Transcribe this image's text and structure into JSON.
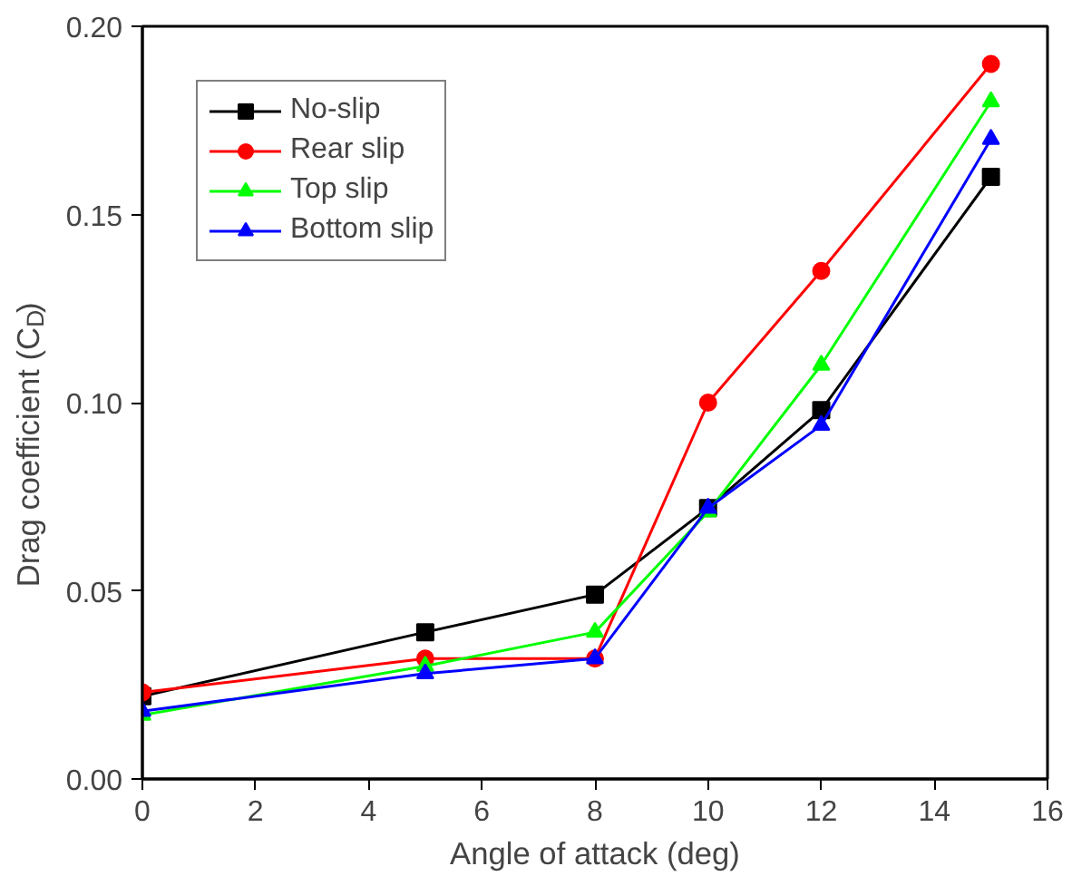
{
  "chart_data": {
    "type": "line",
    "xlabel": "Angle of attack (deg)",
    "ylabel": "Drag coefficient (C$_{D}$)",
    "x": [
      0,
      5,
      8,
      10,
      12,
      15
    ],
    "series": [
      {
        "name": "No-slip",
        "color": "#000000",
        "marker": "square",
        "values": [
          0.022,
          0.039,
          0.049,
          0.072,
          0.098,
          0.16
        ]
      },
      {
        "name": "Rear slip",
        "color": "#ff0000",
        "marker": "circle",
        "values": [
          0.023,
          0.032,
          0.032,
          0.1,
          0.135,
          0.19
        ]
      },
      {
        "name": "Top slip",
        "color": "#00ff00",
        "marker": "triangle",
        "values": [
          0.017,
          0.03,
          0.039,
          0.071,
          0.11,
          0.18
        ]
      },
      {
        "name": "Bottom slip",
        "color": "#0000ff",
        "marker": "triangle",
        "values": [
          0.018,
          0.028,
          0.032,
          0.072,
          0.094,
          0.17
        ]
      }
    ],
    "xlim": [
      0,
      16
    ],
    "xticks": [
      0,
      2,
      4,
      6,
      8,
      10,
      12,
      14,
      16
    ],
    "ylim": [
      0,
      0.2
    ],
    "yticks": [
      {
        "value": 0,
        "label": "0.00"
      },
      {
        "value": 0.05,
        "label": "0.05"
      },
      {
        "value": 0.1,
        "label": "0.10"
      },
      {
        "value": 0.15,
        "label": "0.15"
      },
      {
        "value": 0.2,
        "label": "0.20"
      }
    ],
    "grid": false,
    "legend": "top left"
  }
}
